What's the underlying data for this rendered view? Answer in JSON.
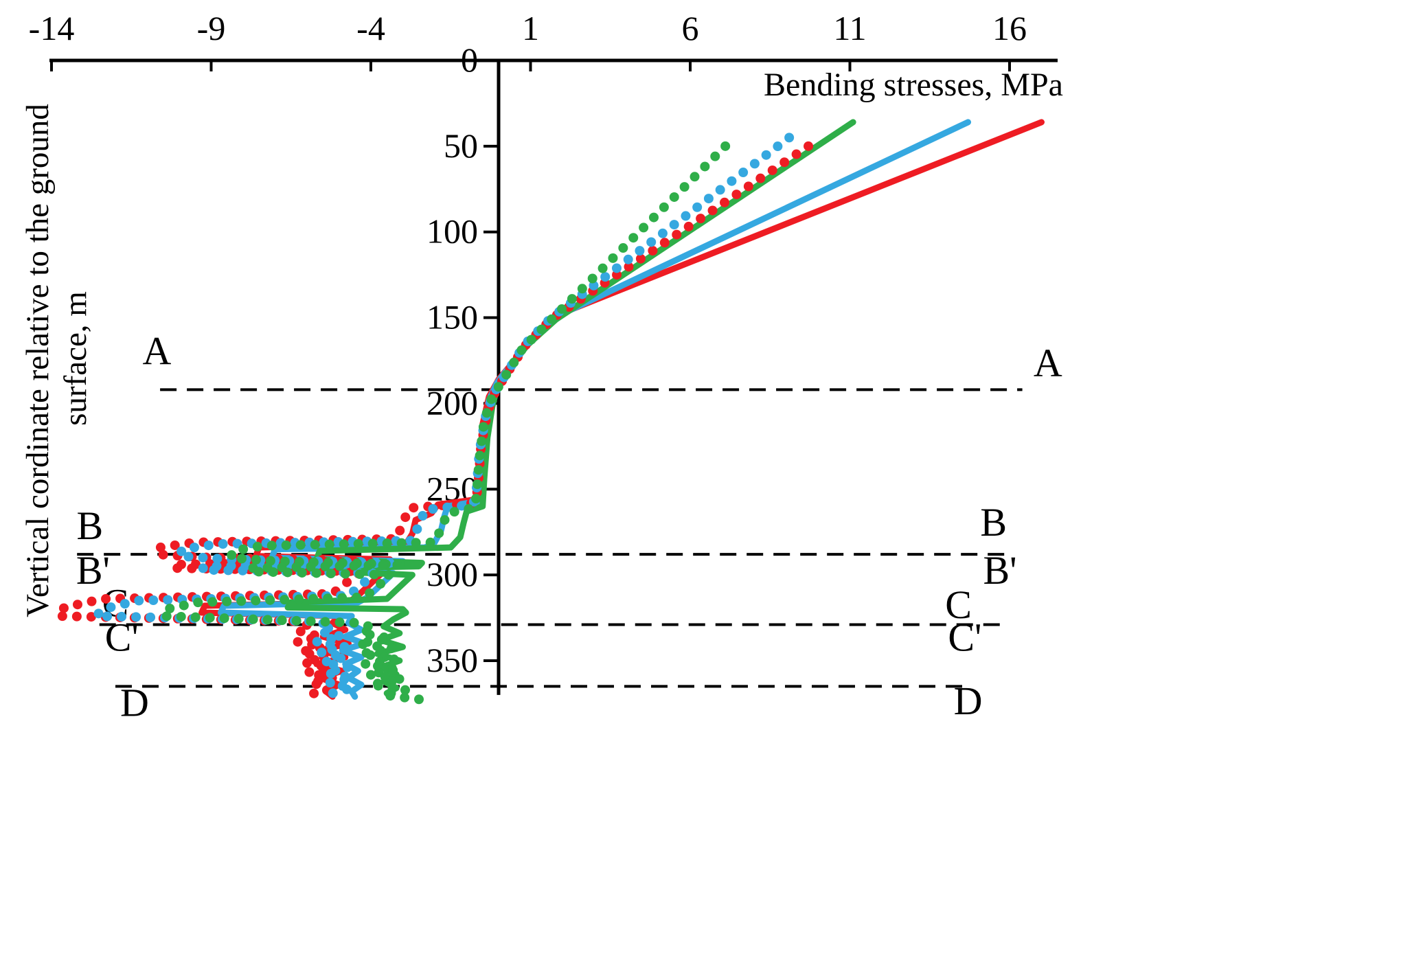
{
  "chart_data": {
    "type": "line",
    "title": "",
    "xlabel": "Bending stresses, MPa",
    "ylabel": "Vertical cordinate relative to the ground surface, m",
    "ylabel_lines": [
      "Vertical cordinate relative to the ground",
      "surface, m"
    ],
    "x_axis": {
      "ticks": [
        -14,
        -9,
        -4,
        1,
        6,
        11,
        16
      ],
      "min": -14,
      "max": 17.5,
      "position": "top"
    },
    "y_axis": {
      "ticks": [
        0,
        50,
        100,
        150,
        200,
        250,
        300,
        350
      ],
      "min": 0,
      "max": 375,
      "direction": "down"
    },
    "grid": false,
    "legend": "none",
    "axis_color": "#000000",
    "section_lines": [
      {
        "depth": 192,
        "x_start": -10.6,
        "x_end": 16.4
      },
      {
        "depth": 288,
        "x_start": -13.2,
        "x_end": 16.0
      },
      {
        "depth": 329,
        "x_start": -12.5,
        "x_end": 15.8
      },
      {
        "depth": 365,
        "x_start": -12.0,
        "x_end": 14.8
      }
    ],
    "section_labels": [
      {
        "text": "A",
        "left": {
          "x": -10.7,
          "depth": 170
        },
        "right": {
          "x": 17.2,
          "depth": 177
        }
      },
      {
        "text": "B",
        "left": {
          "x": -12.8,
          "depth": 272
        },
        "right": {
          "x": 15.5,
          "depth": 270
        }
      },
      {
        "text": "B'",
        "left": {
          "x": -12.7,
          "depth": 298
        },
        "right": {
          "x": 15.7,
          "depth": 298
        }
      },
      {
        "text": "C",
        "left": {
          "x": -12.0,
          "depth": 317
        },
        "right": {
          "x": 14.4,
          "depth": 318
        }
      },
      {
        "text": "C'",
        "left": {
          "x": -11.8,
          "depth": 337
        },
        "right": {
          "x": 14.6,
          "depth": 337
        }
      },
      {
        "text": "D",
        "left": {
          "x": -11.4,
          "depth": 375
        },
        "right": {
          "x": 14.7,
          "depth": 374
        }
      }
    ],
    "series": [
      {
        "id": "red-solid",
        "color": "#ee1c23",
        "line_style": "solid",
        "points": [
          [
            17.0,
            36
          ],
          [
            1.9,
            148
          ],
          [
            1.0,
            163
          ],
          [
            0.5,
            175
          ],
          [
            0.0,
            186
          ],
          [
            -0.3,
            196
          ],
          [
            -0.5,
            212
          ],
          [
            -0.6,
            238
          ],
          [
            -0.7,
            256
          ],
          [
            -1.9,
            259
          ],
          [
            -2.1,
            264
          ],
          [
            -2.6,
            268
          ],
          [
            -2.7,
            276
          ],
          [
            -2.9,
            282
          ],
          [
            -7.5,
            284
          ],
          [
            -7.6,
            289
          ],
          [
            -3.4,
            291
          ],
          [
            -3.5,
            293
          ],
          [
            -6.9,
            294
          ],
          [
            -7.0,
            296
          ],
          [
            -3.6,
            298
          ],
          [
            -4.0,
            305
          ],
          [
            -4.4,
            312
          ],
          [
            -4.7,
            316
          ],
          [
            -9.2,
            318
          ],
          [
            -9.3,
            322
          ],
          [
            -5.0,
            324
          ],
          [
            -5.2,
            328
          ],
          [
            -4.8,
            332
          ],
          [
            -5.5,
            336
          ],
          [
            -4.7,
            340
          ],
          [
            -5.6,
            344
          ],
          [
            -4.8,
            348
          ],
          [
            -5.7,
            352
          ],
          [
            -4.9,
            356
          ],
          [
            -5.6,
            360
          ],
          [
            -5.0,
            364
          ],
          [
            -5.4,
            368
          ],
          [
            -5.2,
            371
          ]
        ]
      },
      {
        "id": "blue-solid",
        "color": "#35a8e0",
        "line_style": "solid",
        "points": [
          [
            14.7,
            36
          ],
          [
            1.85,
            149
          ],
          [
            0.95,
            164
          ],
          [
            0.45,
            176
          ],
          [
            -0.05,
            188
          ],
          [
            -0.3,
            198
          ],
          [
            -0.45,
            214
          ],
          [
            -0.55,
            240
          ],
          [
            -0.6,
            257
          ],
          [
            -1.6,
            260
          ],
          [
            -1.7,
            266
          ],
          [
            -1.8,
            274
          ],
          [
            -2.0,
            281
          ],
          [
            -2.3,
            284
          ],
          [
            -7.0,
            285
          ],
          [
            -7.1,
            290
          ],
          [
            -3.0,
            292
          ],
          [
            -3.1,
            294
          ],
          [
            -6.4,
            295
          ],
          [
            -6.5,
            297
          ],
          [
            -3.3,
            299
          ],
          [
            -3.7,
            306
          ],
          [
            -4.1,
            313
          ],
          [
            -4.4,
            316
          ],
          [
            -8.6,
            318
          ],
          [
            -8.7,
            322
          ],
          [
            -4.6,
            324
          ],
          [
            -4.7,
            328
          ],
          [
            -4.3,
            332
          ],
          [
            -4.8,
            336
          ],
          [
            -4.2,
            340
          ],
          [
            -4.9,
            344
          ],
          [
            -4.3,
            348
          ],
          [
            -4.8,
            352
          ],
          [
            -4.4,
            356
          ],
          [
            -4.7,
            360
          ],
          [
            -4.3,
            364
          ],
          [
            -4.6,
            368
          ],
          [
            -4.5,
            371
          ]
        ]
      },
      {
        "id": "green-solid",
        "color": "#2fae49",
        "line_style": "solid",
        "points": [
          [
            11.1,
            36
          ],
          [
            1.8,
            151
          ],
          [
            0.9,
            166
          ],
          [
            0.4,
            178
          ],
          [
            -0.05,
            191
          ],
          [
            -0.2,
            202
          ],
          [
            -0.35,
            220
          ],
          [
            -0.45,
            244
          ],
          [
            -0.5,
            260
          ],
          [
            -1.0,
            263
          ],
          [
            -1.1,
            270
          ],
          [
            -1.2,
            278
          ],
          [
            -1.5,
            284
          ],
          [
            -5.6,
            286
          ],
          [
            -5.7,
            291
          ],
          [
            -2.4,
            293
          ],
          [
            -2.5,
            295
          ],
          [
            -5.0,
            296
          ],
          [
            -5.1,
            298
          ],
          [
            -2.7,
            300
          ],
          [
            -3.1,
            307
          ],
          [
            -3.5,
            314
          ],
          [
            -6.5,
            316
          ],
          [
            -6.6,
            319
          ],
          [
            -3.0,
            320
          ],
          [
            -2.9,
            322
          ],
          [
            -3.3,
            326
          ],
          [
            -3.6,
            330
          ],
          [
            -3.1,
            334
          ],
          [
            -3.7,
            338
          ],
          [
            -3.0,
            342
          ],
          [
            -3.8,
            346
          ],
          [
            -3.1,
            350
          ],
          [
            -3.7,
            354
          ],
          [
            -3.2,
            358
          ],
          [
            -3.6,
            362
          ],
          [
            -3.2,
            366
          ],
          [
            -3.5,
            369
          ],
          [
            -3.4,
            371
          ]
        ]
      },
      {
        "id": "red-dotted",
        "color": "#ee1c23",
        "line_style": "dotted",
        "points": [
          [
            9.7,
            50
          ],
          [
            1.7,
            150
          ],
          [
            0.85,
            166
          ],
          [
            0.35,
            180
          ],
          [
            -0.1,
            193
          ],
          [
            -0.35,
            205
          ],
          [
            -0.55,
            225
          ],
          [
            -0.65,
            250
          ],
          [
            -0.75,
            258
          ],
          [
            -2.8,
            261
          ],
          [
            -3.0,
            270
          ],
          [
            -3.2,
            279
          ],
          [
            -9.5,
            281
          ],
          [
            -10.6,
            284
          ],
          [
            -10.7,
            288
          ],
          [
            -9.0,
            290
          ],
          [
            -3.9,
            292
          ],
          [
            -10.1,
            294
          ],
          [
            -10.2,
            296
          ],
          [
            -4.3,
            298
          ],
          [
            -4.8,
            305
          ],
          [
            -5.2,
            311
          ],
          [
            -12.4,
            314
          ],
          [
            -13.6,
            319
          ],
          [
            -13.8,
            324
          ],
          [
            -6.3,
            327
          ],
          [
            -5.9,
            330
          ],
          [
            -6.2,
            333
          ],
          [
            -5.6,
            336
          ],
          [
            -6.3,
            339
          ],
          [
            -5.5,
            342
          ],
          [
            -6.2,
            345
          ],
          [
            -5.4,
            348
          ],
          [
            -6.1,
            351
          ],
          [
            -5.3,
            354
          ],
          [
            -6.0,
            357
          ],
          [
            -5.2,
            360
          ],
          [
            -5.9,
            363
          ],
          [
            -5.1,
            366
          ],
          [
            -5.8,
            369
          ],
          [
            -5.4,
            372
          ]
        ]
      },
      {
        "id": "blue-dotted",
        "color": "#35a8e0",
        "line_style": "dotted",
        "points": [
          [
            9.1,
            45
          ],
          [
            1.65,
            150
          ],
          [
            0.8,
            166
          ],
          [
            0.3,
            181
          ],
          [
            -0.15,
            194
          ],
          [
            -0.4,
            207
          ],
          [
            -0.6,
            228
          ],
          [
            -0.7,
            252
          ],
          [
            -0.8,
            259
          ],
          [
            -2.3,
            262
          ],
          [
            -2.5,
            271
          ],
          [
            -2.7,
            280
          ],
          [
            -8.8,
            282
          ],
          [
            -9.9,
            285
          ],
          [
            -10.0,
            289
          ],
          [
            -8.4,
            291
          ],
          [
            -3.4,
            293
          ],
          [
            -9.2,
            295
          ],
          [
            -9.3,
            297
          ],
          [
            -3.9,
            299
          ],
          [
            -4.3,
            306
          ],
          [
            -4.7,
            312
          ],
          [
            -11.3,
            315
          ],
          [
            -12.4,
            320
          ],
          [
            -12.6,
            324
          ],
          [
            -5.7,
            327
          ],
          [
            -5.2,
            330
          ],
          [
            -5.6,
            333
          ],
          [
            -4.9,
            336
          ],
          [
            -5.7,
            339
          ],
          [
            -4.8,
            342
          ],
          [
            -5.6,
            345
          ],
          [
            -4.8,
            348
          ],
          [
            -5.5,
            351
          ],
          [
            -4.7,
            354
          ],
          [
            -5.4,
            357
          ],
          [
            -4.6,
            360
          ],
          [
            -5.3,
            363
          ],
          [
            -4.6,
            366
          ],
          [
            -5.2,
            369
          ],
          [
            -4.9,
            372
          ]
        ]
      },
      {
        "id": "green-dotted",
        "color": "#2fae49",
        "line_style": "dotted",
        "points": [
          [
            7.1,
            50
          ],
          [
            1.6,
            152
          ],
          [
            0.75,
            168
          ],
          [
            0.25,
            183
          ],
          [
            -0.2,
            196
          ],
          [
            -0.45,
            210
          ],
          [
            -0.6,
            232
          ],
          [
            -0.7,
            255
          ],
          [
            -0.8,
            261
          ],
          [
            -1.6,
            264
          ],
          [
            -1.8,
            273
          ],
          [
            -2.0,
            281
          ],
          [
            -7.4,
            283
          ],
          [
            -8.3,
            286
          ],
          [
            -8.4,
            290
          ],
          [
            -7.0,
            292
          ],
          [
            -2.9,
            294
          ],
          [
            -7.7,
            296
          ],
          [
            -7.8,
            298
          ],
          [
            -3.4,
            300
          ],
          [
            -3.8,
            307
          ],
          [
            -4.2,
            313
          ],
          [
            -9.4,
            316
          ],
          [
            -10.4,
            320
          ],
          [
            -10.5,
            324
          ],
          [
            -4.4,
            328
          ],
          [
            -3.9,
            331
          ],
          [
            -4.3,
            334
          ],
          [
            -3.4,
            337
          ],
          [
            -4.4,
            340
          ],
          [
            -3.3,
            343
          ],
          [
            -4.3,
            346
          ],
          [
            -3.2,
            349
          ],
          [
            -4.2,
            352
          ],
          [
            -3.1,
            355
          ],
          [
            -4.1,
            358
          ],
          [
            -3.0,
            361
          ],
          [
            -4.0,
            364
          ],
          [
            -2.9,
            367
          ],
          [
            -3.6,
            370
          ],
          [
            -2.3,
            373
          ]
        ]
      }
    ]
  }
}
